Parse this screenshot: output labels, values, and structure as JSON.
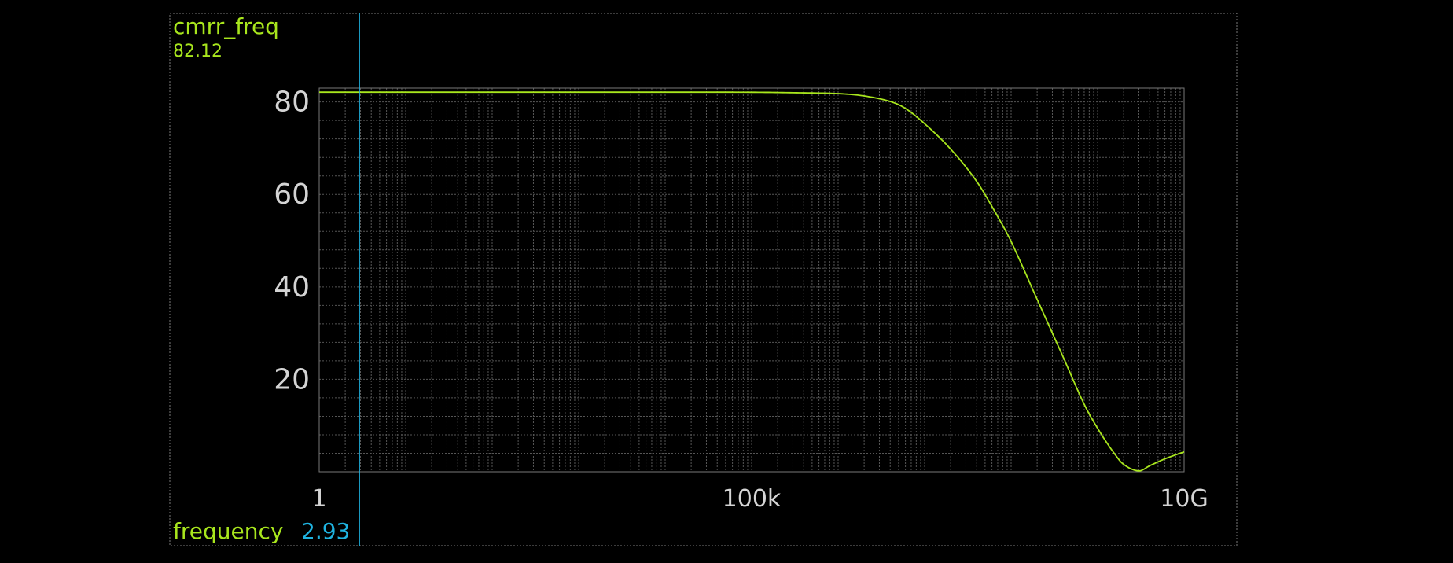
{
  "panel": {
    "signal_name": "cmrr_freq",
    "signal_value": "82.12",
    "x_name": "frequency",
    "x_value": "2.93"
  },
  "colors": {
    "background": "#000000",
    "trace": "#a8e61d",
    "cursor": "#1fb3e0",
    "axis_text": "#d4d4d4",
    "grid": "#555555",
    "frame": "#777777"
  },
  "chart_data": {
    "type": "line",
    "title": "cmrr_freq",
    "xlabel": "frequency",
    "ylabel": "",
    "x_scale": "log",
    "xlim": [
      1,
      10000000000
    ],
    "ylim": [
      0,
      83
    ],
    "x_ticks": [
      1,
      100000,
      10000000000
    ],
    "x_tick_labels": [
      "1",
      "100k",
      "10G"
    ],
    "y_ticks": [
      20,
      40,
      60,
      80
    ],
    "y_tick_labels": [
      "20",
      "40",
      "60",
      "80"
    ],
    "grid": true,
    "cursor_x": 2.93,
    "series": [
      {
        "name": "cmrr_freq",
        "x": [
          1,
          10,
          100,
          1000,
          10000,
          100000,
          300000,
          1000000,
          2000000,
          4000000,
          6000000,
          10000000,
          20000000,
          40000000,
          70000000,
          100000000,
          200000000,
          400000000,
          700000000,
          1000000000,
          1500000000,
          2000000000,
          3000000000,
          4000000000,
          6000000000,
          10000000000
        ],
        "y": [
          82.12,
          82.12,
          82.12,
          82.12,
          82.12,
          82.1,
          82.0,
          81.8,
          81.3,
          80.1,
          78.6,
          75.3,
          69.8,
          62.8,
          55.2,
          49.8,
          37.3,
          24.8,
          14.6,
          9.4,
          4.4,
          1.6,
          0.2,
          1.3,
          2.8,
          4.3
        ]
      }
    ]
  }
}
